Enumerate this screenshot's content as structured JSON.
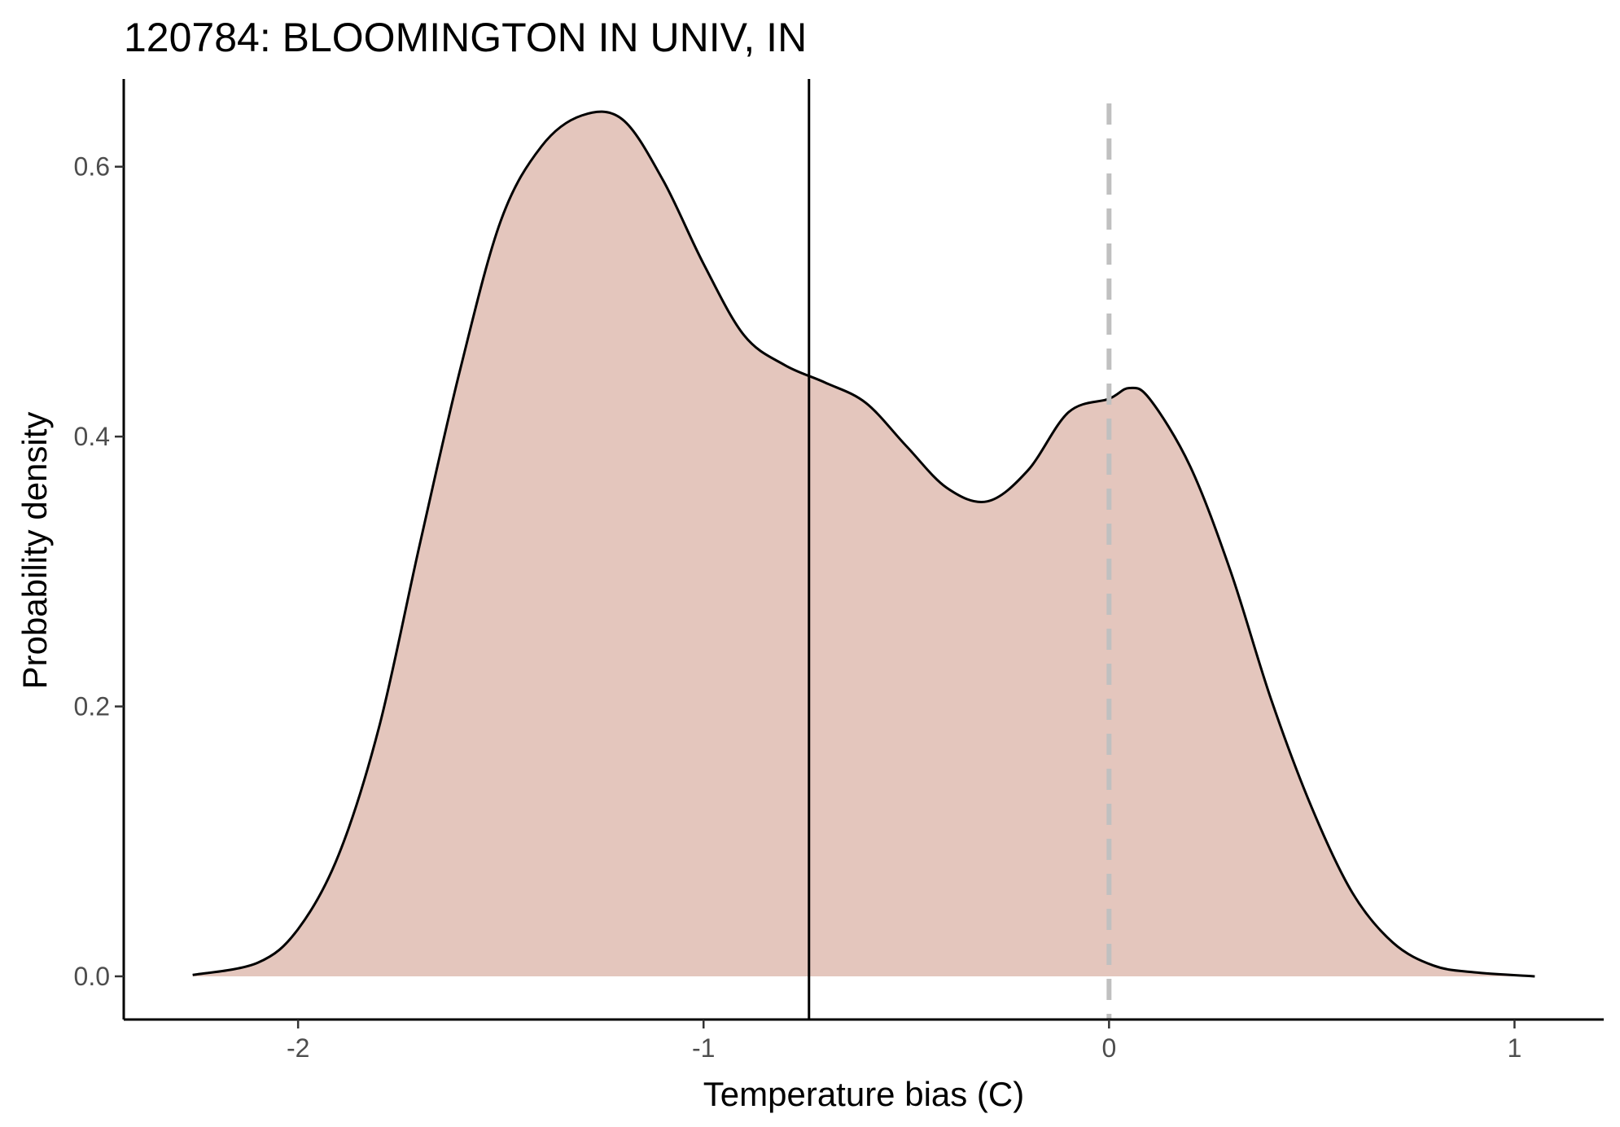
{
  "chart_data": {
    "type": "area",
    "title": "120784: BLOOMINGTON IN UNIV, IN",
    "xlabel": "Temperature bias (C)",
    "ylabel": "Probability density",
    "xlim": [
      -2.43,
      1.22
    ],
    "ylim": [
      -0.032,
      0.665
    ],
    "x_ticks": [
      -2,
      -1,
      0,
      1
    ],
    "x_tick_labels": [
      "-2",
      "-1",
      "0",
      "1"
    ],
    "y_ticks": [
      0.0,
      0.2,
      0.4,
      0.6
    ],
    "y_tick_labels": [
      "0.0",
      "0.2",
      "0.4",
      "0.6"
    ],
    "grid": false,
    "colors": {
      "fill": "#e4c6bd",
      "line": "#000000",
      "reference_line": "#c0c0c0",
      "axis": "#000000"
    },
    "series": [
      {
        "x": [
          -2.26,
          -2.1,
          -2.0,
          -1.9,
          -1.8,
          -1.7,
          -1.6,
          -1.5,
          -1.4,
          -1.3,
          -1.2,
          -1.1,
          -1.0,
          -0.9,
          -0.8,
          -0.7,
          -0.6,
          -0.5,
          -0.4,
          -0.3,
          -0.2,
          -0.1,
          0.0,
          0.05,
          0.1,
          0.2,
          0.3,
          0.4,
          0.5,
          0.6,
          0.7,
          0.8,
          0.9,
          1.05
        ],
        "y": [
          0.001,
          0.01,
          0.035,
          0.09,
          0.185,
          0.32,
          0.45,
          0.56,
          0.615,
          0.638,
          0.635,
          0.59,
          0.528,
          0.475,
          0.453,
          0.44,
          0.425,
          0.393,
          0.362,
          0.352,
          0.375,
          0.418,
          0.428,
          0.436,
          0.428,
          0.378,
          0.3,
          0.205,
          0.125,
          0.062,
          0.025,
          0.008,
          0.003,
          0.0
        ]
      }
    ],
    "vertical_lines": [
      {
        "x": -0.74,
        "style": "solid"
      },
      {
        "x": 0.0,
        "style": "dashed"
      }
    ]
  }
}
